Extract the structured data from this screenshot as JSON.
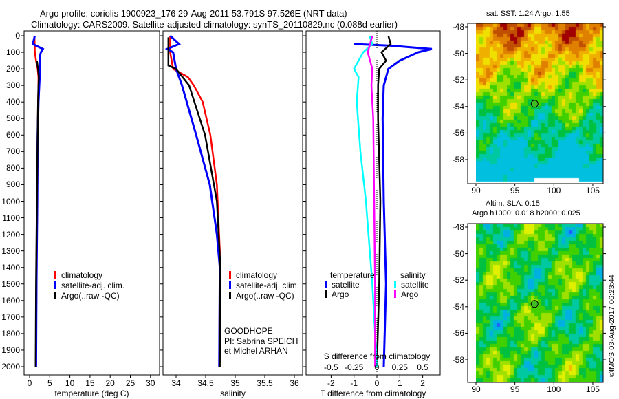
{
  "title": {
    "line1": "Argo profile: coriolis 1900923_176 29-Aug-2011 53.791S 97.526E (NRT data)",
    "line2": "Climatology: CARS2009. Satellite-adjusted climatology: synTS_20110829.nc (0.088d earlier)"
  },
  "colors": {
    "climatology": "#ff0000",
    "satellite": "#0000ff",
    "argo": "#000000",
    "sal_satellite": "#00ffff",
    "sal_argo": "#ff00ff"
  },
  "chart_data": [
    {
      "type": "line",
      "name": "temperature",
      "xlabel": "temperature (deg C)",
      "xlim": [
        -1.5,
        32
      ],
      "ylim": [
        2050,
        -30
      ],
      "xticks": [
        0,
        5,
        10,
        15,
        20,
        25,
        30
      ],
      "yticks": [
        0,
        100,
        200,
        300,
        400,
        500,
        600,
        700,
        800,
        900,
        1000,
        1100,
        1200,
        1300,
        1400,
        1500,
        1600,
        1700,
        1800,
        1900,
        2000
      ],
      "legend": [
        "climatology",
        "satellite-adj. clim.",
        "Argo(..raw -QC)"
      ],
      "series": [
        {
          "name": "climatology",
          "color": "#ff0000",
          "depth": [
            0,
            100,
            150,
            200,
            250,
            300,
            400,
            600,
            1000,
            1500,
            2000
          ],
          "values": [
            1.2,
            1.3,
            1.6,
            2.0,
            2.2,
            2.2,
            2.1,
            2.0,
            1.9,
            1.7,
            1.6
          ]
        },
        {
          "name": "satellite-adj. clim.",
          "color": "#0000ff",
          "depth": [
            0,
            50,
            80,
            100,
            130,
            200,
            300,
            400,
            600,
            1000,
            1500,
            2000
          ],
          "values": [
            1.3,
            0.8,
            3.3,
            2.8,
            2.5,
            2.6,
            2.4,
            2.2,
            2.0,
            1.9,
            1.7,
            1.6
          ]
        },
        {
          "name": "Argo(..raw -QC)",
          "color": "#000000",
          "depth": [
            150,
            200,
            250,
            300,
            400,
            600,
            1000,
            1500,
            2000
          ],
          "values": [
            1.8,
            2.1,
            2.3,
            2.2,
            2.1,
            2.0,
            1.8,
            1.6,
            1.5
          ]
        }
      ]
    },
    {
      "type": "line",
      "name": "salinity",
      "xlabel": "salinity",
      "xlim": [
        33.78,
        36.1
      ],
      "ylim": [
        2050,
        -30
      ],
      "xticks": [
        34,
        34.5,
        35,
        35.5,
        36
      ],
      "legend": [
        "climatology",
        "satellite-adj. clim.",
        "Argo(..raw -QC)"
      ],
      "annotation": [
        "GOODHOPE",
        "PI: Sabrina SPEICH et Michel ARHAN"
      ],
      "series": [
        {
          "name": "climatology",
          "color": "#ff0000",
          "depth": [
            0,
            100,
            200,
            250,
            300,
            400,
            600,
            900,
            1300,
            2000
          ],
          "values": [
            33.9,
            33.9,
            33.95,
            34.2,
            34.3,
            34.45,
            34.58,
            34.69,
            34.74,
            34.73
          ]
        },
        {
          "name": "satellite-adj. clim.",
          "color": "#0000ff",
          "depth": [
            0,
            50,
            80,
            100,
            200,
            300,
            600,
            900,
            1200,
            1400,
            2000
          ],
          "values": [
            33.9,
            34.05,
            33.85,
            33.95,
            34.0,
            34.1,
            34.34,
            34.57,
            34.69,
            34.74,
            34.73
          ]
        },
        {
          "name": "Argo(..raw -QC)",
          "color": "#000000",
          "depth": [
            10,
            180,
            200,
            300,
            600,
            1000,
            1400,
            2000
          ],
          "values": [
            33.87,
            33.87,
            34.0,
            34.22,
            34.49,
            34.69,
            34.75,
            34.74
          ]
        }
      ]
    },
    {
      "type": "line",
      "name": "difference",
      "xlabel": "T difference from climatology",
      "x2label": "S difference from climatology",
      "xlim": [
        -3,
        3
      ],
      "ylim": [
        2050,
        -30
      ],
      "xticks": [
        -2,
        -1,
        0,
        1,
        2
      ],
      "x2ticks": [
        -0.5,
        -0.25,
        0,
        0.25,
        0.5
      ],
      "legend": {
        "temperature": "temperature",
        "salinity": "salinity",
        "t_sat": "satellite",
        "t_argo": "Argo",
        "s_sat": "satellite",
        "s_argo": "Argo"
      },
      "series": [
        {
          "name": "T satellite",
          "axis": "T",
          "color": "#0000ff",
          "depth": [
            50,
            60,
            80,
            100,
            150,
            200,
            300,
            500,
            1000,
            1500,
            2000
          ],
          "values": [
            -1.0,
            0.6,
            2.4,
            1.8,
            1.0,
            0.5,
            0.3,
            0.25,
            0.3,
            0.4,
            0.3
          ]
        },
        {
          "name": "T Argo",
          "axis": "T",
          "color": "#000000",
          "depth": [
            0,
            50,
            100,
            150,
            200,
            300,
            500,
            1000,
            1500,
            2000
          ],
          "values": [
            0.5,
            0.6,
            0.2,
            0.4,
            0.1,
            0.05,
            0.05,
            0.15,
            0.1,
            0.0
          ]
        },
        {
          "name": "S satellite",
          "axis": "S",
          "color": "#00ffff",
          "depth": [
            0,
            50,
            100,
            200,
            250,
            400,
            700,
            1000,
            1500,
            2000
          ],
          "values": [
            -0.08,
            -0.05,
            -0.15,
            -0.25,
            -0.2,
            -0.22,
            -0.18,
            -0.12,
            -0.05,
            0.0
          ]
        },
        {
          "name": "S Argo",
          "axis": "S",
          "color": "#ff00ff",
          "depth": [
            0,
            100,
            200,
            300,
            500,
            1000,
            1500,
            2000
          ],
          "values": [
            -0.05,
            -0.1,
            -0.05,
            -0.06,
            -0.04,
            -0.03,
            -0.02,
            -0.02
          ]
        }
      ]
    },
    {
      "type": "heatmap",
      "name": "sat-sst-map",
      "title": "sat. SST: 1.24 Argo: 1.55",
      "xticks": [
        90,
        95,
        100,
        105
      ],
      "yticks": [
        -48,
        -50,
        -52,
        -54,
        -56,
        -58
      ],
      "argo_position": [
        97.526,
        -53.791
      ]
    },
    {
      "type": "heatmap",
      "name": "altim-sla-map",
      "title1": "Altim. SLA: 0.15",
      "title2": "Argo h1000: 0.018 h2000: 0.025",
      "xticks": [
        90,
        95,
        100,
        105
      ],
      "yticks": [
        -48,
        -50,
        -52,
        -54,
        -56,
        -58
      ],
      "argo_position": [
        97.526,
        -53.791
      ]
    }
  ],
  "copyright": "©IMOS 03-Aug-2017 06:23:44"
}
